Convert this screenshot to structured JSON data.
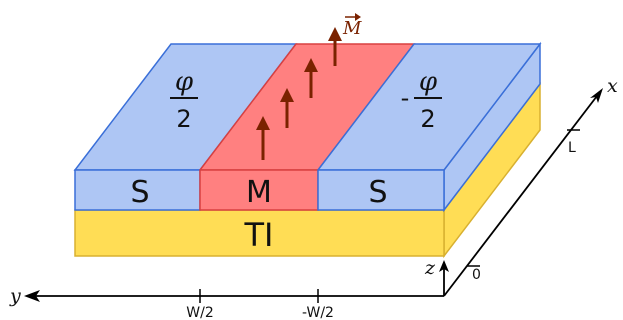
{
  "colors": {
    "superconductor": "#aec6f4",
    "superconductor_edge": "#3a6fd8",
    "magnet": "#ff8080",
    "magnet_edge": "#d84040",
    "insulator": "#ffdd55",
    "insulator_edge": "#d8b030",
    "arrow": "#7a2200",
    "axis": "#000000"
  },
  "diagram": {
    "left_region": {
      "phase_numerator": "φ",
      "phase_denominator": "2",
      "sign": "",
      "block_label": "S"
    },
    "middle_region": {
      "block_label": "M",
      "vector_label": "M"
    },
    "right_region": {
      "phase_numerator": "φ",
      "phase_denominator": "2",
      "sign": "-",
      "block_label": "S"
    },
    "substrate_label": "TI",
    "axes": {
      "y_label": "y",
      "x_label": "x",
      "z_label": "z",
      "tick_w_half_pos": "W/2",
      "tick_w_half_neg": "-W/2",
      "tick_zero": "0",
      "tick_length": "L"
    }
  }
}
